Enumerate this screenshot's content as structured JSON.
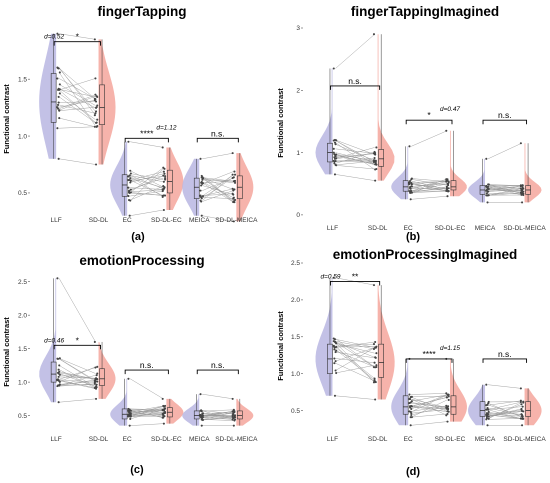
{
  "colors": {
    "violin_left": "#b9b6e2",
    "violin_right": "#f4a69c",
    "line": "#9a9a9a",
    "point": "#444444",
    "box": "#333333"
  },
  "chart_data": [
    {
      "id": "a",
      "panel_label": "(a)",
      "type": "violin",
      "title": "fingerTapping",
      "ylabel": "Functional contrast",
      "ylim": [
        0.35,
        1.95
      ],
      "yticks": [
        {
          "v": 0.5,
          "t": "0.5"
        },
        {
          "v": 1.0,
          "t": "1.0"
        },
        {
          "v": 1.5,
          "t": "1.5"
        }
      ],
      "categories": [
        "LLF",
        "SD-DL",
        "EC",
        "SD-DL-EC",
        "MEICA",
        "SD-DL-MEICA"
      ],
      "groups": [
        {
          "min": 0.8,
          "q1": 1.12,
          "median": 1.3,
          "q3": 1.55,
          "max": 1.9
        },
        {
          "min": 0.75,
          "q1": 1.1,
          "median": 1.25,
          "q3": 1.45,
          "max": 1.85
        },
        {
          "min": 0.3,
          "q1": 0.47,
          "median": 0.57,
          "q3": 0.66,
          "max": 0.95
        },
        {
          "min": 0.35,
          "q1": 0.5,
          "median": 0.6,
          "q3": 0.7,
          "max": 0.9
        },
        {
          "min": 0.3,
          "q1": 0.45,
          "median": 0.55,
          "q3": 0.63,
          "max": 0.8
        },
        {
          "min": 0.25,
          "q1": 0.45,
          "median": 0.55,
          "q3": 0.65,
          "max": 0.85
        }
      ],
      "comparisons": [
        {
          "pair": [
            0,
            1
          ],
          "label": "*",
          "y": 1.83,
          "d": "d=0.52"
        },
        {
          "pair": [
            2,
            3
          ],
          "label": "****",
          "y": 0.98,
          "d": "d=1.12"
        },
        {
          "pair": [
            4,
            5
          ],
          "label": "n.s.",
          "y": 0.98,
          "d": ""
        }
      ]
    },
    {
      "id": "b",
      "panel_label": "(b)",
      "type": "violin",
      "title": "fingerTappingImagined",
      "ylabel": "Functional contrast",
      "ylim": [
        -0.05,
        3.0
      ],
      "yticks": [
        {
          "v": 0,
          "t": "0"
        },
        {
          "v": 1,
          "t": "1"
        },
        {
          "v": 2,
          "t": "2"
        },
        {
          "v": 3,
          "t": "3"
        }
      ],
      "categories": [
        "LLF",
        "SD-DL",
        "EC",
        "SD-DL-EC",
        "MEICA",
        "SD-DL-MEICA"
      ],
      "groups": [
        {
          "min": 0.65,
          "q1": 0.85,
          "median": 1.0,
          "q3": 1.15,
          "max": 2.35
        },
        {
          "min": 0.55,
          "q1": 0.78,
          "median": 0.9,
          "q3": 1.05,
          "max": 2.9
        },
        {
          "min": 0.25,
          "q1": 0.38,
          "median": 0.45,
          "q3": 0.55,
          "max": 1.1
        },
        {
          "min": 0.3,
          "q1": 0.4,
          "median": 0.45,
          "q3": 0.55,
          "max": 1.35
        },
        {
          "min": 0.2,
          "q1": 0.33,
          "median": 0.4,
          "q3": 0.47,
          "max": 0.9
        },
        {
          "min": 0.2,
          "q1": 0.33,
          "median": 0.4,
          "q3": 0.47,
          "max": 1.15
        }
      ],
      "comparisons": [
        {
          "pair": [
            0,
            1
          ],
          "label": "n.s.",
          "y": 2.07,
          "d": ""
        },
        {
          "pair": [
            2,
            3
          ],
          "label": "*",
          "y": 1.52,
          "d": "d=0.47"
        },
        {
          "pair": [
            4,
            5
          ],
          "label": "n.s.",
          "y": 1.52,
          "d": ""
        }
      ]
    },
    {
      "id": "c",
      "panel_label": "(c)",
      "type": "violin",
      "title": "emotionProcessing",
      "ylabel": "Functional contrast",
      "ylim": [
        0.3,
        2.6
      ],
      "yticks": [
        {
          "v": 0.5,
          "t": "0.5"
        },
        {
          "v": 1.0,
          "t": "1.0"
        },
        {
          "v": 1.5,
          "t": "1.5"
        },
        {
          "v": 2.0,
          "t": "2.0"
        },
        {
          "v": 2.5,
          "t": "2.5"
        }
      ],
      "categories": [
        "LLF",
        "SD-DL",
        "EC",
        "SD-DL-EC",
        "MEICA",
        "SD-DL-MEICA"
      ],
      "groups": [
        {
          "min": 0.7,
          "q1": 1.0,
          "median": 1.12,
          "q3": 1.3,
          "max": 2.55
        },
        {
          "min": 0.75,
          "q1": 0.95,
          "median": 1.05,
          "q3": 1.2,
          "max": 1.6
        },
        {
          "min": 0.35,
          "q1": 0.45,
          "median": 0.52,
          "q3": 0.6,
          "max": 1.05
        },
        {
          "min": 0.38,
          "q1": 0.48,
          "median": 0.55,
          "q3": 0.62,
          "max": 0.75
        },
        {
          "min": 0.35,
          "q1": 0.45,
          "median": 0.5,
          "q3": 0.57,
          "max": 0.82
        },
        {
          "min": 0.35,
          "q1": 0.45,
          "median": 0.5,
          "q3": 0.57,
          "max": 0.75
        }
      ],
      "comparisons": [
        {
          "pair": [
            0,
            1
          ],
          "label": "*",
          "y": 1.55,
          "d": "d=0.46"
        },
        {
          "pair": [
            2,
            3
          ],
          "label": "n.s.",
          "y": 1.18,
          "d": ""
        },
        {
          "pair": [
            4,
            5
          ],
          "label": "n.s.",
          "y": 1.18,
          "d": ""
        }
      ]
    },
    {
      "id": "d",
      "panel_label": "(d)",
      "type": "violin",
      "title": "emotionProcessingImagined",
      "ylabel": "Functional contrast",
      "ylim": [
        0.25,
        2.5
      ],
      "yticks": [
        {
          "v": 0.5,
          "t": "0.5"
        },
        {
          "v": 1.0,
          "t": "1.0"
        },
        {
          "v": 1.5,
          "t": "1.5"
        },
        {
          "v": 2.0,
          "t": "2.0"
        },
        {
          "v": 2.5,
          "t": "2.5"
        }
      ],
      "categories": [
        "LLF",
        "SD-DL",
        "EC",
        "SD-DL-EC",
        "MEICA",
        "SD-DL-MEICA"
      ],
      "groups": [
        {
          "min": 0.7,
          "q1": 1.0,
          "median": 1.2,
          "q3": 1.4,
          "max": 2.3
        },
        {
          "min": 0.65,
          "q1": 0.95,
          "median": 1.15,
          "q3": 1.4,
          "max": 2.2
        },
        {
          "min": 0.3,
          "q1": 0.45,
          "median": 0.55,
          "q3": 0.7,
          "max": 1.2
        },
        {
          "min": 0.35,
          "q1": 0.45,
          "median": 0.55,
          "q3": 0.7,
          "max": 1.2
        },
        {
          "min": 0.3,
          "q1": 0.42,
          "median": 0.5,
          "q3": 0.62,
          "max": 0.85
        },
        {
          "min": 0.3,
          "q1": 0.42,
          "median": 0.5,
          "q3": 0.62,
          "max": 0.8
        }
      ],
      "comparisons": [
        {
          "pair": [
            0,
            1
          ],
          "label": "**",
          "y": 2.25,
          "d": "d=0.59"
        },
        {
          "pair": [
            2,
            3
          ],
          "label": "****",
          "y": 1.2,
          "d": "d=1.15"
        },
        {
          "pair": [
            4,
            5
          ],
          "label": "n.s.",
          "y": 1.2,
          "d": ""
        }
      ]
    }
  ]
}
